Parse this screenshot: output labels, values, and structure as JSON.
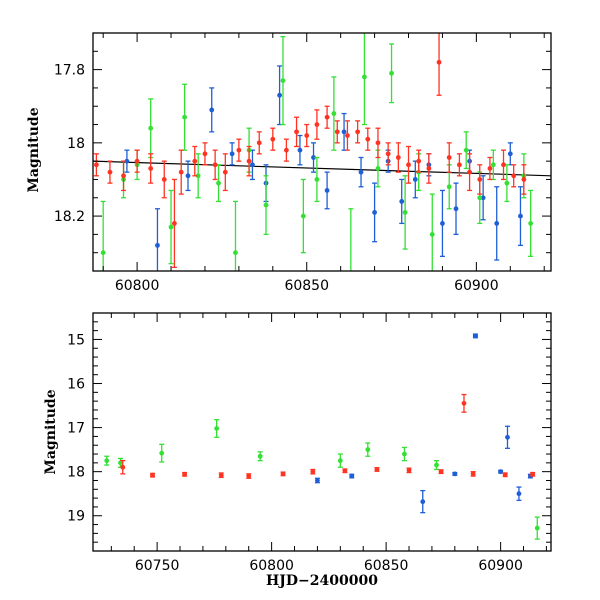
{
  "colors": {
    "blue": "#1f5fd6",
    "green": "#33e033",
    "red": "#ff3322",
    "fit_line": "#000000"
  },
  "chart_data": [
    {
      "type": "scatter",
      "panel": "top",
      "xlabel": "",
      "ylabel": "Magnitude",
      "xlim": [
        60787,
        60922
      ],
      "ylim": [
        18.35,
        17.7
      ],
      "y_inverted": true,
      "xticks": [
        60800,
        60850,
        60900
      ],
      "xtick_labels": [
        "60800",
        "60850",
        "60900"
      ],
      "yticks": [
        17.8,
        18,
        18.2
      ],
      "ytick_labels": [
        "17.8",
        "18",
        "18.2"
      ],
      "fit_line": {
        "x": [
          60787,
          60922
        ],
        "y": [
          18.05,
          18.09
        ]
      },
      "series": [
        {
          "color": "blue",
          "x": [
            60797,
            60806,
            60815,
            60822,
            60828,
            60834,
            60838,
            60842,
            60848,
            60852,
            60856,
            60861,
            60866,
            60870,
            60874,
            60878,
            60882,
            60886,
            60890,
            60894,
            60898,
            60902,
            60906,
            60910,
            60913
          ],
          "y": [
            18.05,
            18.28,
            18.09,
            17.91,
            18.03,
            18.06,
            18.11,
            17.87,
            18.02,
            18.04,
            18.13,
            17.97,
            18.08,
            18.19,
            18.05,
            18.16,
            18.1,
            18.06,
            18.22,
            18.18,
            18.05,
            18.15,
            18.22,
            18.03,
            18.2
          ],
          "err": [
            0.03,
            0.1,
            0.04,
            0.06,
            0.03,
            0.04,
            0.05,
            0.08,
            0.04,
            0.04,
            0.05,
            0.05,
            0.04,
            0.08,
            0.03,
            0.06,
            0.05,
            0.03,
            0.09,
            0.07,
            0.03,
            0.06,
            0.1,
            0.03,
            0.08
          ]
        },
        {
          "color": "green",
          "x": [
            60790,
            60796,
            60800,
            60804,
            60810,
            60814,
            60818,
            60824,
            60829,
            60833,
            60838,
            60843,
            60849,
            60853,
            60858,
            60863,
            60867,
            60871,
            60875,
            60879,
            60883,
            60887,
            60892,
            60897,
            60901,
            60905,
            60909,
            60914,
            60916
          ],
          "y": [
            18.3,
            18.1,
            18.06,
            17.96,
            18.23,
            17.93,
            18.09,
            18.11,
            18.3,
            18.02,
            18.17,
            17.83,
            18.2,
            18.1,
            17.92,
            18.36,
            17.82,
            18.07,
            17.81,
            18.19,
            18.08,
            18.25,
            18.12,
            18.02,
            18.15,
            18.06,
            18.11,
            18.09,
            18.22
          ],
          "err": [
            0.14,
            0.05,
            0.04,
            0.08,
            0.1,
            0.09,
            0.06,
            0.05,
            0.14,
            0.06,
            0.08,
            0.12,
            0.1,
            0.06,
            0.1,
            0.18,
            0.13,
            0.05,
            0.08,
            0.1,
            0.05,
            0.11,
            0.06,
            0.05,
            0.07,
            0.04,
            0.05,
            0.06,
            0.09
          ]
        },
        {
          "color": "red",
          "x": [
            60788,
            60792,
            60796,
            60800,
            60804,
            60808,
            60811,
            60813,
            60817,
            60820,
            60823,
            60826,
            60830,
            60833,
            60836,
            60840,
            60844,
            60847,
            60850,
            60853,
            60856,
            60859,
            60862,
            60865,
            60868,
            60871,
            60874,
            60877,
            60880,
            60883,
            60886,
            60889,
            60892,
            60895,
            60898,
            60901,
            60904,
            60908,
            60911,
            60914
          ],
          "y": [
            18.06,
            18.08,
            18.09,
            18.05,
            18.07,
            18.1,
            18.22,
            18.08,
            18.05,
            18.03,
            18.06,
            18.08,
            18.02,
            18.05,
            18.0,
            17.99,
            18.02,
            17.97,
            17.98,
            17.95,
            17.93,
            17.97,
            17.98,
            17.97,
            17.99,
            18.0,
            18.03,
            18.04,
            18.06,
            18.05,
            18.07,
            17.78,
            18.04,
            18.06,
            18.08,
            18.1,
            18.07,
            18.06,
            18.09,
            18.1
          ],
          "err": [
            0.03,
            0.03,
            0.04,
            0.03,
            0.04,
            0.05,
            0.12,
            0.06,
            0.04,
            0.03,
            0.04,
            0.05,
            0.03,
            0.04,
            0.03,
            0.03,
            0.03,
            0.04,
            0.03,
            0.04,
            0.03,
            0.03,
            0.04,
            0.03,
            0.03,
            0.04,
            0.03,
            0.04,
            0.05,
            0.03,
            0.04,
            0.09,
            0.04,
            0.03,
            0.05,
            0.04,
            0.03,
            0.04,
            0.03,
            0.04
          ]
        }
      ]
    },
    {
      "type": "scatter",
      "panel": "bottom",
      "xlabel": "HJD−2400000",
      "ylabel": "Magnitude",
      "xlim": [
        60722,
        60922
      ],
      "ylim": [
        19.8,
        14.4
      ],
      "y_inverted": true,
      "xticks": [
        60750,
        60800,
        60850,
        60900
      ],
      "xtick_labels": [
        "60750",
        "60800",
        "60850",
        "60900"
      ],
      "yticks": [
        15,
        16,
        17,
        18,
        19
      ],
      "ytick_labels": [
        "15",
        "16",
        "17",
        "18",
        "19"
      ],
      "series": [
        {
          "color": "blue",
          "x": [
            60889,
            60903,
            60866,
            60908,
            60820,
            60835,
            60880,
            60900,
            60913
          ],
          "y": [
            14.92,
            17.22,
            18.68,
            18.5,
            18.2,
            18.1,
            18.05,
            18.0,
            18.1
          ],
          "err": [
            0.0,
            0.25,
            0.25,
            0.15,
            0.05,
            0.04,
            0.03,
            0.03,
            0.04
          ]
        },
        {
          "color": "green",
          "x": [
            60728,
            60752,
            60776,
            60830,
            60842,
            60858,
            60872,
            60916,
            60734,
            60795
          ],
          "y": [
            17.75,
            17.58,
            17.02,
            17.75,
            17.5,
            17.6,
            17.85,
            19.28,
            17.8,
            17.65
          ],
          "err": [
            0.1,
            0.2,
            0.2,
            0.15,
            0.15,
            0.15,
            0.1,
            0.25,
            0.1,
            0.1
          ]
        },
        {
          "color": "red",
          "x": [
            60884,
            60735,
            60748,
            60762,
            60778,
            60790,
            60805,
            60818,
            60832,
            60846,
            60860,
            60874,
            60888,
            60902,
            60914
          ],
          "y": [
            16.45,
            17.9,
            18.08,
            18.06,
            18.08,
            18.1,
            18.05,
            18.0,
            17.98,
            17.95,
            17.97,
            18.0,
            18.05,
            18.07,
            18.06
          ],
          "err": [
            0.2,
            0.15,
            0.04,
            0.04,
            0.05,
            0.05,
            0.04,
            0.05,
            0.04,
            0.04,
            0.05,
            0.04,
            0.05,
            0.04,
            0.04
          ]
        }
      ]
    }
  ]
}
